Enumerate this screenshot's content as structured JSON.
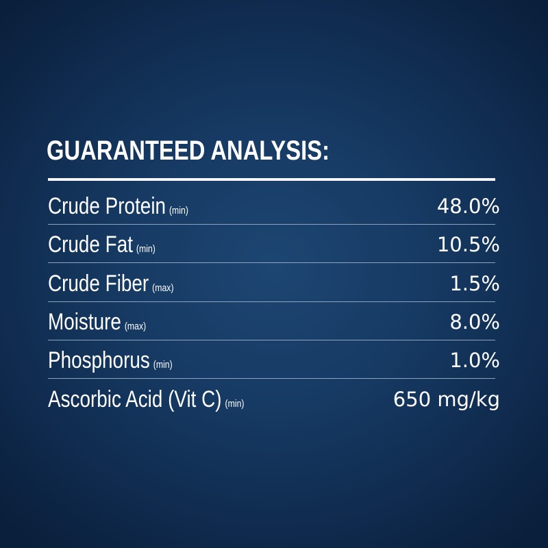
{
  "title": "GUARANTEED ANALYSIS:",
  "rows": [
    {
      "label": "Crude Protein",
      "qualifier": "(min)",
      "value": "48.0%"
    },
    {
      "label": "Crude Fat",
      "qualifier": "(min)",
      "value": "10.5%"
    },
    {
      "label": "Crude Fiber",
      "qualifier": "(max)",
      "value": "1.5%"
    },
    {
      "label": "Moisture",
      "qualifier": "(max)",
      "value": "8.0%"
    },
    {
      "label": "Phosphorus",
      "qualifier": "(min)",
      "value": "1.0%"
    },
    {
      "label": "Ascorbic Acid (Vit C)",
      "qualifier": "(min)",
      "value": "650 mg/kg"
    }
  ],
  "colors": {
    "background_center": "#1d4672",
    "background_edge": "#0a1f3b",
    "text": "#ffffff"
  }
}
